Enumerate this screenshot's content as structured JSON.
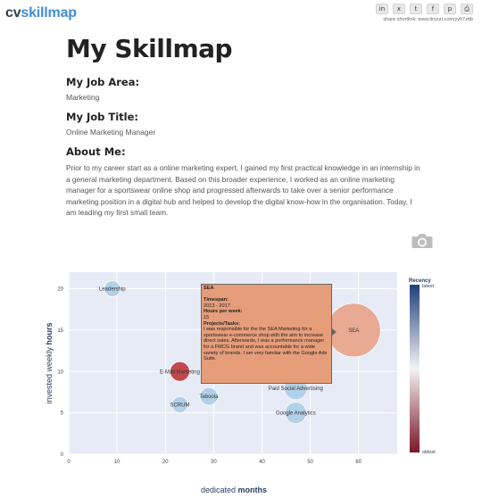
{
  "header": {
    "logo_cv": "cv",
    "logo_skillmap": "skillmap",
    "share_icons": [
      "linkedin-icon",
      "xing-icon",
      "twitter-icon",
      "facebook-icon",
      "pinterest-icon",
      "print-icon"
    ],
    "share_glyphs": [
      "in",
      "x",
      "t",
      "f",
      "p",
      "⎙"
    ],
    "shortlink": "share shortlink: www.tinyurl.com/yyh7zttb"
  },
  "main": {
    "title": "My Skillmap",
    "job_area_heading": "My Job Area:",
    "job_area": "Marketing",
    "job_title_heading": "My Job Title:",
    "job_title": "Online Marketing Manager",
    "about_heading": "About Me:",
    "about_text": "Prior to my career start as a online marketing expert, I gained my first practical knowledge in an internship in a general marketing department. Based on this broader experience, I worked as an online marketing manager for a sportswear online shop and progressed afterwards to take over a senior performance marketing position in a digital hub and helped to develop the digital know-how in the organisation. Today, I am leading my first small team."
  },
  "chart_data": {
    "type": "scatter",
    "xlabel_prefix": "dedicated ",
    "xlabel_bold": "months",
    "ylabel_prefix": "invested weekly ",
    "ylabel_bold": "hours",
    "xlim": [
      0,
      68
    ],
    "ylim": [
      0,
      22
    ],
    "x_ticks": [
      0,
      10,
      20,
      30,
      40,
      50,
      60
    ],
    "y_ticks": [
      0,
      5,
      10,
      15,
      20
    ],
    "legend_title": "Recency",
    "legend_top": "latest",
    "legend_bottom": "oldest",
    "colors": {
      "latest": "#1f3f7a",
      "mid": "#f3f3f3",
      "oldest": "#7a1624"
    },
    "points": [
      {
        "label": "Leadership",
        "x": 9,
        "y": 20,
        "size": 9,
        "color": "#aecde6"
      },
      {
        "label": "SEA",
        "x": 59,
        "y": 15,
        "size": 30,
        "color": "#e8a48a"
      },
      {
        "label": "E-Mail Marketing",
        "x": 23,
        "y": 10,
        "size": 11,
        "color": "#c0393f"
      },
      {
        "label": "Paid Social Advertising",
        "x": 47,
        "y": 8,
        "size": 13,
        "color": "#aecde6"
      },
      {
        "label": "Taboola",
        "x": 29,
        "y": 7,
        "size": 10,
        "color": "#aecde6"
      },
      {
        "label": "SCRUM",
        "x": 23,
        "y": 6,
        "size": 9,
        "color": "#aecde6"
      },
      {
        "label": "Google Analytics",
        "x": 47,
        "y": 5,
        "size": 12,
        "color": "#aecde6"
      }
    ],
    "tooltip": {
      "title": "SEA",
      "timespan_label": "Timespan:",
      "timespan": "2013 - 2017",
      "hours_label": "Hours per week:",
      "hours": "15",
      "projects_label": "Projects/Tasks:",
      "projects": "I was responsible for the the SEA Marketing for a sportswear e-commerce shop with the aim to increase direct sales. Afterwards, I was a performance manager for a FMCG brand and was accountable for a wide variety of brands. I am very familiar with the Google Ads Suite."
    }
  }
}
